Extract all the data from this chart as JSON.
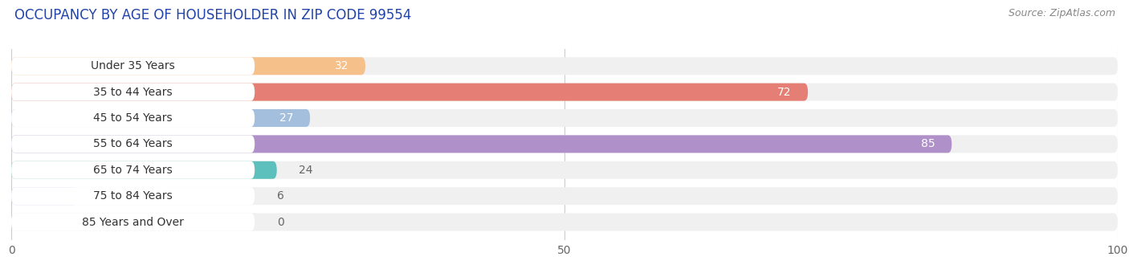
{
  "title": "OCCUPANCY BY AGE OF HOUSEHOLDER IN ZIP CODE 99554",
  "source": "Source: ZipAtlas.com",
  "categories": [
    "Under 35 Years",
    "35 to 44 Years",
    "45 to 54 Years",
    "55 to 64 Years",
    "65 to 74 Years",
    "75 to 84 Years",
    "85 Years and Over"
  ],
  "values": [
    32,
    72,
    27,
    85,
    24,
    6,
    0
  ],
  "bar_colors": [
    "#f5c08a",
    "#e57f75",
    "#a4bedd",
    "#b090c8",
    "#5dc0bc",
    "#b8b8e8",
    "#f0a0b8"
  ],
  "bar_bg_color": "#f0f0f0",
  "xlim": [
    0,
    100
  ],
  "title_fontsize": 12,
  "source_fontsize": 9,
  "tick_fontsize": 10,
  "cat_fontsize": 10,
  "val_fontsize": 10,
  "background_color": "#ffffff",
  "value_label_color_inside": "#ffffff",
  "value_label_color_outside": "#666666",
  "label_bg_color": "#ffffff",
  "inside_threshold": 20
}
